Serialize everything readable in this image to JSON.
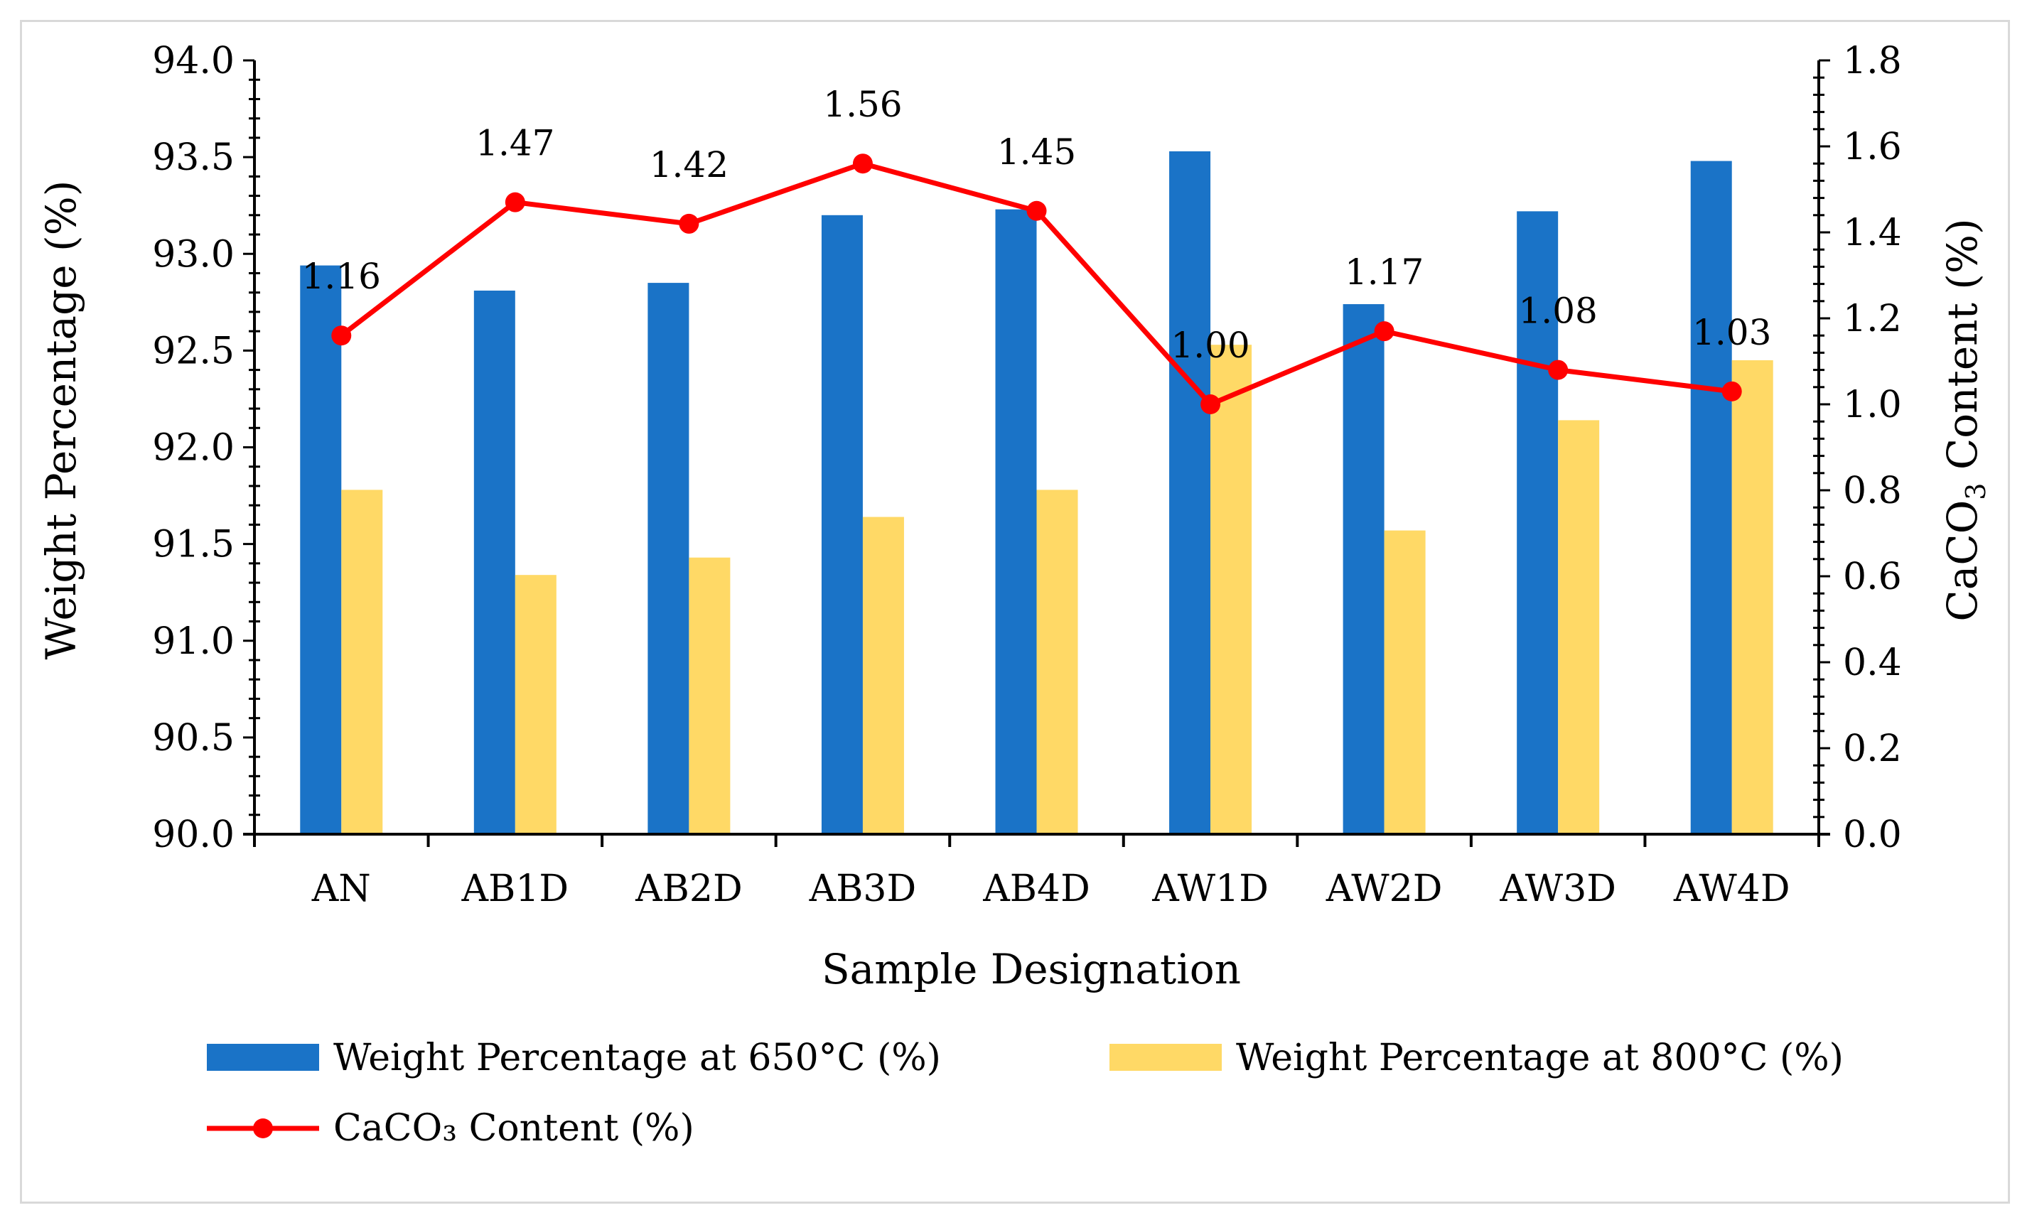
{
  "chart_data": {
    "type": "bar",
    "categories": [
      "AN",
      "AB1D",
      "AB2D",
      "AB3D",
      "AB4D",
      "AW1D",
      "AW2D",
      "AW3D",
      "AW4D"
    ],
    "series": [
      {
        "name": "Weight Percentage at 650°C (%)",
        "type": "bar",
        "axis": "left",
        "color": "#1a73c7",
        "values": [
          92.94,
          92.81,
          92.85,
          93.2,
          93.23,
          93.53,
          92.74,
          93.22,
          93.48
        ]
      },
      {
        "name": "Weight Percentage at 800°C (%)",
        "type": "bar",
        "axis": "left",
        "color": "#ffd966",
        "values": [
          91.78,
          91.34,
          91.43,
          91.64,
          91.78,
          92.53,
          91.57,
          92.14,
          92.45
        ]
      },
      {
        "name": "CaCO₃ Content (%)",
        "type": "line",
        "axis": "right",
        "color": "#ff0000",
        "values": [
          1.16,
          1.47,
          1.42,
          1.56,
          1.45,
          1.0,
          1.17,
          1.08,
          1.03
        ],
        "labels": [
          "1.16",
          "1.47",
          "1.42",
          "1.56",
          "1.45",
          "1.00",
          "1.17",
          "1.08",
          "1.03"
        ]
      }
    ],
    "xlabel": "Sample Designation",
    "ylabel": "Weight Percentage (%)",
    "y2label_prefix": "CaCO",
    "y2label_sub": "3",
    "y2label_suffix": " Content (%)",
    "ylim": [
      90.0,
      94.0
    ],
    "y2lim": [
      0.0,
      1.8
    ],
    "yticks": [
      "90.0",
      "90.5",
      "91.0",
      "91.5",
      "92.0",
      "92.5",
      "93.0",
      "93.5",
      "94.0"
    ],
    "y2ticks": [
      "0.0",
      "0.2",
      "0.4",
      "0.6",
      "0.8",
      "1.0",
      "1.2",
      "1.4",
      "1.6",
      "1.8"
    ],
    "grid": false,
    "legend_position": "bottom"
  }
}
